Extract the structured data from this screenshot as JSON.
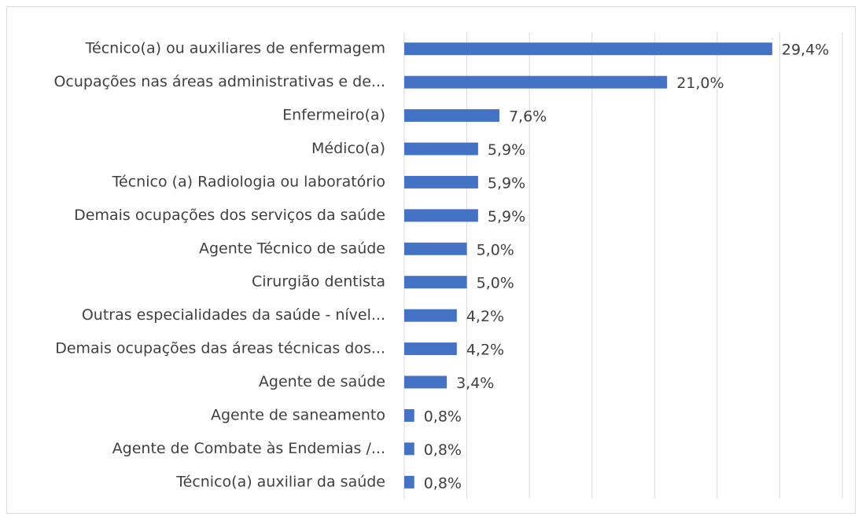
{
  "chart_data": {
    "type": "bar",
    "orientation": "horizontal",
    "categories": [
      "Técnico(a) ou auxiliares de enfermagem",
      "Ocupações nas áreas administrativas e de...",
      "Enfermeiro(a)",
      "Médico(a)",
      "Técnico (a) Radiologia ou laboratório",
      "Demais ocupações dos serviços da saúde",
      "Agente Técnico de saúde",
      "Cirurgião dentista",
      "Outras especialidades da saúde - nível...",
      "Demais ocupações das áreas técnicas dos...",
      "Agente de saúde",
      "Agente de saneamento",
      "Agente de Combate às Endemias /...",
      "Técnico(a) auxiliar da saúde"
    ],
    "values": [
      29.4,
      21.0,
      7.6,
      5.9,
      5.9,
      5.9,
      5.0,
      5.0,
      4.2,
      4.2,
      3.4,
      0.8,
      0.8,
      0.8
    ],
    "value_labels": [
      "29,4%",
      "21,0%",
      "7,6%",
      "5,9%",
      "5,9%",
      "5,9%",
      "5,0%",
      "5,0%",
      "4,2%",
      "4,2%",
      "3,4%",
      "0,8%",
      "0,8%",
      "0,8%"
    ],
    "color": "#4472c4",
    "xlim": [
      0,
      35
    ],
    "xticks": [
      0,
      5,
      10,
      15,
      20,
      25,
      30,
      35
    ],
    "grid": true
  }
}
